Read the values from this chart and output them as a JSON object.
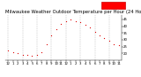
{
  "title": "Milwaukee Weather Outdoor Temperature per Hour (24 Hours)",
  "hours": [
    0,
    1,
    2,
    3,
    4,
    5,
    6,
    7,
    8,
    9,
    10,
    11,
    12,
    13,
    14,
    15,
    16,
    17,
    18,
    19,
    20,
    21,
    22,
    23
  ],
  "temps": [
    22,
    21,
    20,
    19,
    19,
    18,
    19,
    21,
    27,
    33,
    38,
    42,
    44,
    45,
    44,
    43,
    41,
    39,
    36,
    33,
    31,
    29,
    27,
    26
  ],
  "dot_color": "#dd0000",
  "bg_color": "#ffffff",
  "grid_color": "#999999",
  "ylim": [
    15,
    48
  ],
  "xlim": [
    -0.5,
    23.5
  ],
  "ytick_vals": [
    20,
    25,
    30,
    35,
    40,
    45
  ],
  "grid_positions": [
    0,
    3,
    6,
    9,
    12,
    15,
    18,
    21
  ],
  "xtick_labels": [
    "12",
    "1",
    "2",
    "3",
    "4",
    "5",
    "6",
    "7",
    "8",
    "9",
    "10",
    "11",
    "12",
    "1",
    "2",
    "3",
    "4",
    "5",
    "6",
    "7",
    "8",
    "9",
    "10",
    "11"
  ],
  "title_fontsize": 3.8,
  "tick_fontsize": 2.8,
  "legend_facecolor": "#ff0000",
  "legend_edgecolor": "#cc0000"
}
